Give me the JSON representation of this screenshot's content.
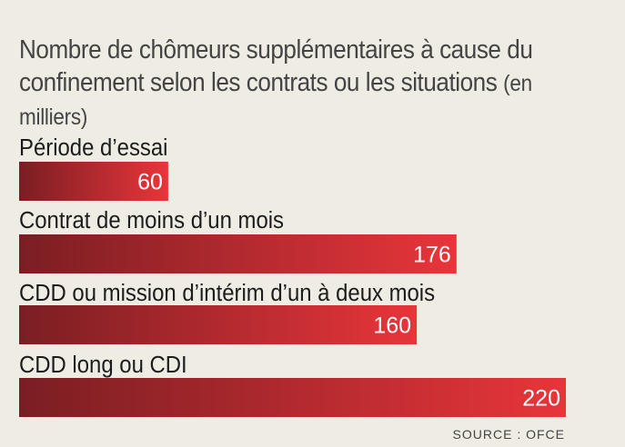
{
  "title_main": "Nombre de chômeurs supplémentaires à cause du confinement selon les contrats ou les situations",
  "title_unit": "(en milliers)",
  "source": "SOURCE : OFCE",
  "colors": {
    "background": "#eeece3",
    "bar_dark": "#7a1e23",
    "bar_light": "#e8353a",
    "label_text": "#1c1c1c",
    "value_text": "#ffffff"
  },
  "chart_data": {
    "type": "bar",
    "orientation": "horizontal",
    "title": "Nombre de chômeurs supplémentaires à cause du confinement selon les contrats ou les situations",
    "unit": "(en milliers)",
    "categories": [
      "Période d’essai",
      "Contrat de moins d’un mois",
      "CDD ou mission d’intérim d’un à deux mois",
      "CDD long ou CDI"
    ],
    "values": [
      60,
      176,
      160,
      220
    ],
    "xlim": [
      0,
      220
    ],
    "grid": false,
    "legend": "none",
    "source": "SOURCE : OFCE"
  }
}
